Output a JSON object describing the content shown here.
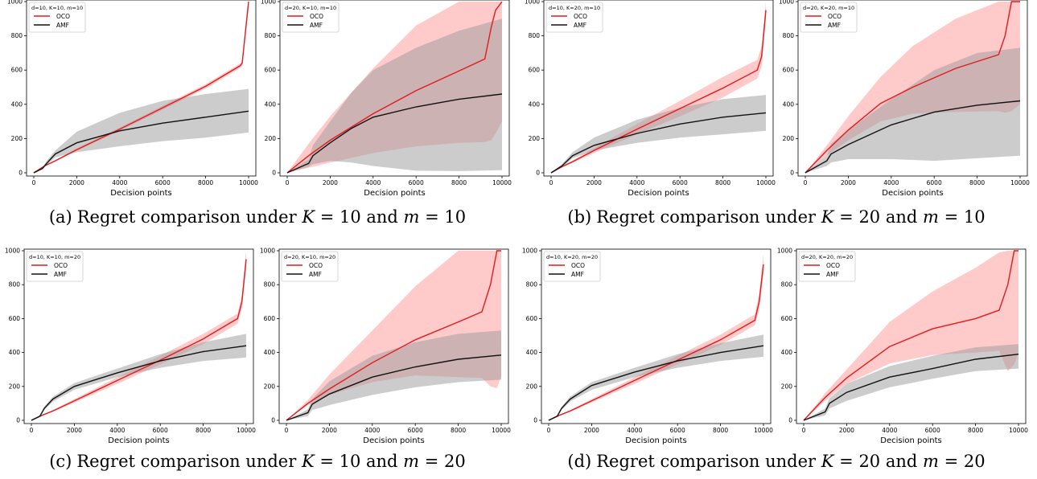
{
  "common": {
    "xlabel": "Decision points",
    "xlim": [
      0,
      10000
    ],
    "ylim": [
      0,
      1000
    ],
    "xticks": [
      0,
      2000,
      4000,
      6000,
      8000,
      10000
    ],
    "yticks": [
      0,
      200,
      400,
      600,
      800,
      1000
    ],
    "colors": {
      "OCO": "#e41a1c",
      "OCO_band": "#ff9f9f",
      "AMF": "#111111",
      "AMF_band": "#9a9a9a"
    }
  },
  "captions": [
    {
      "prefix": "(a)",
      "text": "Regret comparison under",
      "sym1": "K",
      "eq1": " = 10 and ",
      "sym2": "m",
      "eq2": " = 10"
    },
    {
      "prefix": "(b)",
      "text": "Regret comparison under",
      "sym1": "K",
      "eq1": " = 20 and ",
      "sym2": "m",
      "eq2": " = 10"
    },
    {
      "prefix": "(c)",
      "text": "Regret comparison under",
      "sym1": "K",
      "eq1": " = 10 and ",
      "sym2": "m",
      "eq2": " = 20"
    },
    {
      "prefix": "(d)",
      "text": "Regret comparison under",
      "sym1": "K",
      "eq1": " = 20 and ",
      "sym2": "m",
      "eq2": " = 20"
    }
  ],
  "chart_data": [
    {
      "type": "line",
      "legend_title": "d=10, K=10, m=10",
      "legend": "top-left",
      "xlabel": "Decision points",
      "xlim": [
        0,
        10000
      ],
      "ylim": [
        0,
        1000
      ],
      "series": [
        {
          "name": "OCO",
          "color": "#e41a1c",
          "x": [
            0,
            500,
            1000,
            2000,
            4000,
            6000,
            8000,
            9600,
            9700,
            10000
          ],
          "y": [
            0,
            40,
            70,
            135,
            255,
            380,
            505,
            625,
            640,
            1000
          ],
          "lower": [
            0,
            38,
            66,
            128,
            245,
            368,
            492,
            612,
            625,
            960
          ],
          "upper": [
            0,
            42,
            74,
            142,
            265,
            392,
            518,
            638,
            655,
            1000
          ]
        },
        {
          "name": "AMF",
          "color": "#111111",
          "x": [
            0,
            400,
            600,
            1000,
            2000,
            4000,
            6000,
            8000,
            10000
          ],
          "y": [
            0,
            25,
            55,
            110,
            175,
            245,
            290,
            325,
            360
          ],
          "lower": [
            0,
            20,
            45,
            90,
            120,
            155,
            185,
            205,
            235
          ],
          "upper": [
            0,
            30,
            70,
            130,
            240,
            350,
            420,
            460,
            490
          ]
        }
      ]
    },
    {
      "type": "line",
      "legend_title": "d=20, K=10, m=10",
      "legend": "top-left",
      "xlabel": "Decision points",
      "xlim": [
        0,
        10000
      ],
      "ylim": [
        0,
        1000
      ],
      "series": [
        {
          "name": "OCO",
          "color": "#e41a1c",
          "x": [
            0,
            1000,
            2000,
            4000,
            6000,
            8000,
            9200,
            9500,
            9700,
            10000
          ],
          "y": [
            0,
            100,
            190,
            345,
            480,
            595,
            665,
            850,
            950,
            1000
          ],
          "lower": [
            0,
            30,
            60,
            115,
            155,
            175,
            180,
            190,
            230,
            300
          ],
          "upper": [
            0,
            170,
            330,
            610,
            860,
            1000,
            1000,
            1000,
            1000,
            1000
          ]
        },
        {
          "name": "AMF",
          "color": "#111111",
          "x": [
            0,
            1000,
            1200,
            2000,
            3000,
            4000,
            6000,
            8000,
            10000
          ],
          "y": [
            0,
            55,
            100,
            175,
            260,
            325,
            385,
            430,
            460
          ],
          "lower": [
            0,
            35,
            50,
            70,
            60,
            40,
            12,
            10,
            15
          ],
          "upper": [
            0,
            80,
            160,
            300,
            470,
            600,
            730,
            830,
            900
          ]
        }
      ]
    },
    {
      "type": "line",
      "legend_title": "d=10, K=20, m=10",
      "legend": "top-left",
      "xlabel": "Decision points",
      "xlim": [
        0,
        10000
      ],
      "ylim": [
        0,
        1000
      ],
      "series": [
        {
          "name": "OCO",
          "color": "#e41a1c",
          "x": [
            0,
            500,
            1000,
            2000,
            4000,
            6000,
            8000,
            9600,
            9800,
            10000
          ],
          "y": [
            0,
            35,
            65,
            130,
            255,
            375,
            495,
            600,
            680,
            950
          ],
          "lower": [
            0,
            32,
            58,
            115,
            225,
            330,
            440,
            550,
            620,
            900
          ],
          "upper": [
            0,
            38,
            72,
            145,
            285,
            420,
            560,
            660,
            740,
            1000
          ]
        },
        {
          "name": "AMF",
          "color": "#111111",
          "x": [
            0,
            500,
            1000,
            2000,
            4000,
            6000,
            8000,
            10000
          ],
          "y": [
            0,
            40,
            100,
            160,
            230,
            285,
            325,
            350
          ],
          "lower": [
            0,
            30,
            85,
            130,
            175,
            205,
            225,
            245
          ],
          "upper": [
            0,
            50,
            120,
            205,
            310,
            380,
            430,
            455
          ]
        }
      ]
    },
    {
      "type": "line",
      "legend_title": "d=20, K=20, m=10",
      "legend": "top-left",
      "xlabel": "Decision points",
      "xlim": [
        0,
        10000
      ],
      "ylim": [
        0,
        1000
      ],
      "series": [
        {
          "name": "OCO",
          "color": "#e41a1c",
          "x": [
            0,
            1000,
            2000,
            3500,
            5000,
            7000,
            9000,
            9300,
            9600,
            10000
          ],
          "y": [
            0,
            130,
            250,
            405,
            500,
            610,
            690,
            800,
            1000,
            1000
          ],
          "lower": [
            0,
            100,
            190,
            300,
            345,
            355,
            360,
            350,
            360,
            400
          ],
          "upper": [
            0,
            160,
            330,
            560,
            740,
            900,
            1000,
            1000,
            1000,
            1000
          ]
        },
        {
          "name": "AMF",
          "color": "#111111",
          "x": [
            0,
            1000,
            1200,
            2000,
            4000,
            6000,
            8000,
            10000
          ],
          "y": [
            0,
            70,
            110,
            165,
            280,
            355,
            395,
            420
          ],
          "lower": [
            0,
            40,
            60,
            80,
            80,
            70,
            85,
            100
          ],
          "upper": [
            0,
            100,
            170,
            250,
            430,
            600,
            700,
            730
          ]
        }
      ]
    },
    {
      "type": "line",
      "legend_title": "d=10, K=10, m=20",
      "legend": "top-left",
      "xlabel": "Decision points",
      "xlim": [
        0,
        10000
      ],
      "ylim": [
        0,
        1000
      ],
      "series": [
        {
          "name": "OCO",
          "color": "#e41a1c",
          "x": [
            0,
            500,
            1000,
            2000,
            4000,
            6000,
            8000,
            9600,
            9800,
            10000
          ],
          "y": [
            0,
            30,
            55,
            115,
            235,
            355,
            480,
            600,
            700,
            950
          ],
          "lower": [
            0,
            28,
            50,
            105,
            215,
            330,
            450,
            570,
            660,
            900
          ],
          "upper": [
            0,
            32,
            60,
            125,
            255,
            380,
            510,
            630,
            740,
            1000
          ]
        },
        {
          "name": "AMF",
          "color": "#111111",
          "x": [
            0,
            400,
            600,
            1000,
            2000,
            4000,
            6000,
            8000,
            10000
          ],
          "y": [
            0,
            25,
            70,
            125,
            200,
            280,
            350,
            405,
            440
          ],
          "lower": [
            0,
            20,
            60,
            110,
            180,
            255,
            310,
            350,
            370
          ],
          "upper": [
            0,
            30,
            80,
            140,
            220,
            305,
            390,
            460,
            510
          ]
        }
      ]
    },
    {
      "type": "line",
      "legend_title": "d=20, K=10, m=20",
      "legend": "top-left",
      "xlabel": "Decision points",
      "xlim": [
        0,
        10000
      ],
      "ylim": [
        0,
        1000
      ],
      "series": [
        {
          "name": "OCO",
          "color": "#e41a1c",
          "x": [
            0,
            1000,
            2000,
            4000,
            6000,
            8000,
            9100,
            9500,
            9800,
            10000
          ],
          "y": [
            0,
            100,
            185,
            340,
            475,
            580,
            640,
            800,
            1000,
            1000
          ],
          "lower": [
            0,
            90,
            150,
            225,
            265,
            255,
            250,
            200,
            190,
            260
          ],
          "upper": [
            0,
            120,
            270,
            530,
            790,
            1000,
            1000,
            1000,
            1000,
            1000
          ]
        },
        {
          "name": "AMF",
          "color": "#111111",
          "x": [
            0,
            1000,
            1200,
            2000,
            4000,
            6000,
            8000,
            10000
          ],
          "y": [
            0,
            45,
            95,
            155,
            255,
            315,
            360,
            385
          ],
          "lower": [
            0,
            25,
            60,
            90,
            150,
            195,
            225,
            240
          ],
          "upper": [
            0,
            65,
            125,
            230,
            380,
            460,
            510,
            530
          ]
        }
      ]
    },
    {
      "type": "line",
      "legend_title": "d=10, K=20, m=20",
      "legend": "top-left",
      "xlabel": "Decision points",
      "xlim": [
        0,
        10000
      ],
      "ylim": [
        0,
        1000
      ],
      "series": [
        {
          "name": "OCO",
          "color": "#e41a1c",
          "x": [
            0,
            500,
            1000,
            2000,
            4000,
            6000,
            8000,
            9600,
            9800,
            10000
          ],
          "y": [
            0,
            30,
            55,
            115,
            235,
            355,
            475,
            590,
            700,
            920
          ],
          "lower": [
            0,
            28,
            50,
            105,
            215,
            330,
            445,
            560,
            650,
            860
          ],
          "upper": [
            0,
            32,
            60,
            125,
            255,
            380,
            505,
            625,
            750,
            980
          ]
        },
        {
          "name": "AMF",
          "color": "#111111",
          "x": [
            0,
            400,
            600,
            1000,
            2000,
            4000,
            6000,
            8000,
            10000
          ],
          "y": [
            0,
            25,
            70,
            125,
            205,
            285,
            350,
            400,
            440
          ],
          "lower": [
            0,
            20,
            60,
            110,
            180,
            255,
            310,
            350,
            375
          ],
          "upper": [
            0,
            30,
            80,
            140,
            225,
            310,
            390,
            455,
            505
          ]
        }
      ]
    },
    {
      "type": "line",
      "legend_title": "d=20, K=20, m=20",
      "legend": "top-left",
      "xlabel": "Decision points",
      "xlim": [
        0,
        10000
      ],
      "ylim": [
        0,
        1000
      ],
      "series": [
        {
          "name": "OCO",
          "color": "#e41a1c",
          "x": [
            0,
            1000,
            2000,
            4000,
            6000,
            8000,
            9100,
            9500,
            9800,
            10000
          ],
          "y": [
            0,
            135,
            250,
            435,
            540,
            600,
            650,
            800,
            1000,
            1000
          ],
          "lower": [
            0,
            115,
            215,
            335,
            385,
            400,
            410,
            290,
            330,
            400
          ],
          "upper": [
            0,
            160,
            300,
            580,
            760,
            900,
            990,
            1000,
            1000,
            1000
          ]
        },
        {
          "name": "AMF",
          "color": "#111111",
          "x": [
            0,
            1000,
            1200,
            2000,
            4000,
            6000,
            8000,
            10000
          ],
          "y": [
            0,
            50,
            100,
            165,
            255,
            305,
            360,
            390
          ],
          "lower": [
            0,
            30,
            70,
            115,
            195,
            245,
            290,
            305
          ],
          "upper": [
            0,
            70,
            130,
            215,
            320,
            380,
            430,
            450
          ]
        }
      ]
    }
  ]
}
